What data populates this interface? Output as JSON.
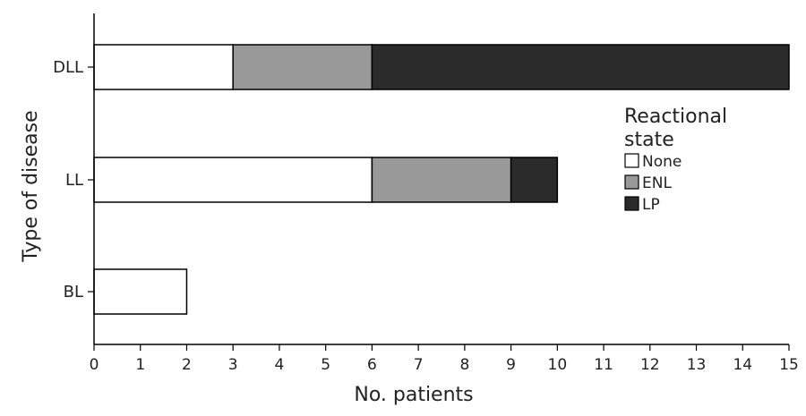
{
  "chart_data": {
    "type": "bar",
    "orientation": "horizontal",
    "stacked": true,
    "categories": [
      "DLL",
      "LL",
      "BL"
    ],
    "series": [
      {
        "name": "None",
        "values": [
          3,
          6,
          2
        ],
        "color": "#ffffff"
      },
      {
        "name": "ENL",
        "values": [
          3,
          3,
          0
        ],
        "color": "#999999"
      },
      {
        "name": "LP",
        "values": [
          9,
          1,
          0
        ],
        "color": "#2b2b2b"
      }
    ],
    "xlabel": "No. patients",
    "ylabel": "Type of disease",
    "xlim": [
      0,
      15
    ],
    "xticks": [
      "0",
      "1",
      "2",
      "3",
      "4",
      "5",
      "6",
      "7",
      "8",
      "9",
      "10",
      "11",
      "12",
      "13",
      "14",
      "15"
    ],
    "grid": false,
    "legend": {
      "title_line1": "Reactional",
      "title_line2": "state",
      "placement": "right"
    }
  }
}
